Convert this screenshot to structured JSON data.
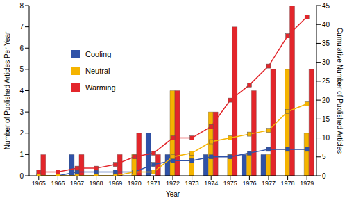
{
  "chart_data": {
    "type": "bar",
    "x_label": "Year",
    "y_label": "Number of Published Articles Per Year",
    "y2_label": "Cumulative Number of Published Articles",
    "categories": [
      "1965",
      "1966",
      "1967",
      "1968",
      "1969",
      "1970",
      "1971",
      "1972",
      "1973",
      "1974",
      "1975",
      "1976",
      "1977",
      "1978",
      "1979"
    ],
    "series": [
      {
        "name": "Cooling",
        "color": "#2f52a8",
        "marker": "square",
        "line_style": "solid",
        "values": [
          0,
          0,
          1,
          0,
          0,
          0,
          2,
          1,
          0,
          1,
          0,
          1,
          1,
          0,
          0
        ],
        "cumulative": [
          0,
          0,
          1,
          1,
          1,
          1,
          3,
          4,
          4,
          5,
          5,
          6,
          7,
          7,
          7
        ]
      },
      {
        "name": "Neutral",
        "color": "#f5b400",
        "marker": "square",
        "line_style": "solid",
        "values": [
          0,
          0,
          0,
          0,
          0,
          1,
          0,
          4,
          1,
          3,
          1,
          1,
          1,
          5,
          2
        ],
        "cumulative": [
          0,
          0,
          0,
          0,
          0,
          1,
          1,
          5,
          6,
          9,
          10,
          11,
          12,
          17,
          19
        ]
      },
      {
        "name": "Warming",
        "color": "#e3262b",
        "marker": "square",
        "line_style": "solid",
        "values": [
          1,
          0,
          1,
          0,
          1,
          2,
          1,
          4,
          0,
          3,
          7,
          4,
          5,
          8,
          5
        ],
        "cumulative": [
          1,
          1,
          2,
          2,
          3,
          5,
          6,
          10,
          10,
          13,
          20,
          24,
          29,
          37,
          42
        ]
      }
    ],
    "ylim": [
      0,
      8
    ],
    "yticks": [
      0,
      1,
      2,
      3,
      4,
      5,
      6,
      7,
      8
    ],
    "y2lim": [
      0,
      45
    ],
    "y2ticks": [
      0,
      5,
      10,
      15,
      20,
      25,
      30,
      35,
      40,
      45
    ],
    "grid": false,
    "legend": "upper left"
  }
}
